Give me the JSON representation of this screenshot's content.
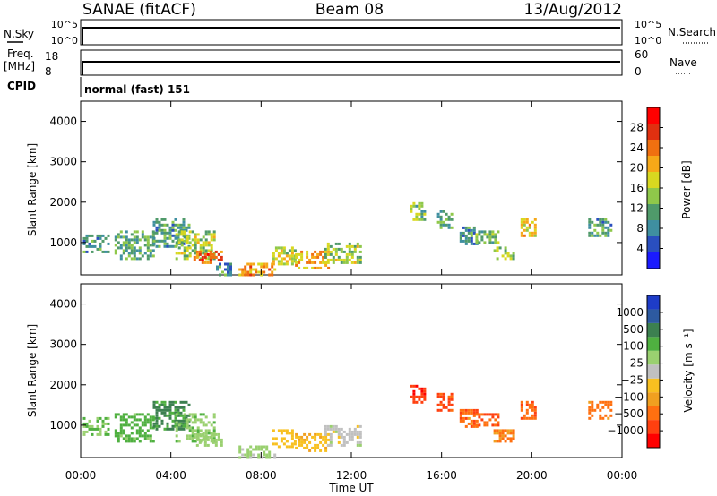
{
  "header": {
    "station": "SANAE (fitACF)",
    "beam": "Beam 08",
    "date": "13/Aug/2012"
  },
  "nsky_panel": {
    "label": "N.Sky",
    "right_label": "N.Search",
    "left_ticks": [
      "10^5",
      "10^0"
    ],
    "right_ticks": [
      "10^5",
      "10^0"
    ]
  },
  "freq_panel": {
    "label_line1": "Freq.",
    "label_line2": "[MHz]",
    "right_label": "Nave",
    "left_ticks": [
      "18",
      "8"
    ],
    "right_ticks": [
      "60",
      "0"
    ]
  },
  "cpid": {
    "label": "CPID",
    "value": "normal (fast) 151"
  },
  "chart_data": [
    {
      "type": "heatmap",
      "quantity": "power",
      "ylabel": "Slant Range [km]",
      "y_ticks": [
        "1000",
        "2000",
        "3000",
        "4000"
      ],
      "ylim": [
        200,
        4500
      ],
      "x_ticks": [
        "00:00",
        "04:00",
        "08:00",
        "12:00",
        "16:00",
        "20:00",
        "00:00"
      ],
      "xlim_hours": [
        0,
        24
      ],
      "colorbar": {
        "label": "Power [dB]",
        "ticks": [
          "4",
          "8",
          "12",
          "16",
          "20",
          "24",
          "28"
        ],
        "colors": [
          "#1a1aff",
          "#2a4fbf",
          "#3f8fa0",
          "#4f9a6a",
          "#8fc84a",
          "#d8d820",
          "#f6a818",
          "#f07010",
          "#e03010",
          "#ff0000"
        ]
      },
      "patches": [
        {
          "t": [
            0.1,
            1.2
          ],
          "r": [
            800,
            1200
          ],
          "v": 8
        },
        {
          "t": [
            1.5,
            3.2
          ],
          "r": [
            600,
            1300
          ],
          "v": 10
        },
        {
          "t": [
            3.2,
            4.8
          ],
          "r": [
            900,
            1600
          ],
          "v": 9
        },
        {
          "t": [
            4.2,
            5.9
          ],
          "r": [
            600,
            1300
          ],
          "v": 14
        },
        {
          "t": [
            5.0,
            6.3
          ],
          "r": [
            500,
            800
          ],
          "v": 24
        },
        {
          "t": [
            6.0,
            6.6
          ],
          "r": [
            200,
            500
          ],
          "v": 8
        },
        {
          "t": [
            7.0,
            8.6
          ],
          "r": [
            200,
            500
          ],
          "v": 22
        },
        {
          "t": [
            8.5,
            9.5
          ],
          "r": [
            500,
            900
          ],
          "v": 16
        },
        {
          "t": [
            9.5,
            11.0
          ],
          "r": [
            400,
            800
          ],
          "v": 20
        },
        {
          "t": [
            10.8,
            12.4
          ],
          "r": [
            500,
            1000
          ],
          "v": 14
        },
        {
          "t": [
            14.6,
            15.3
          ],
          "r": [
            1600,
            2000
          ],
          "v": 12
        },
        {
          "t": [
            15.8,
            16.4
          ],
          "r": [
            1400,
            1800
          ],
          "v": 10
        },
        {
          "t": [
            16.8,
            17.6
          ],
          "r": [
            1000,
            1400
          ],
          "v": 8
        },
        {
          "t": [
            17.5,
            18.5
          ],
          "r": [
            1000,
            1300
          ],
          "v": 12
        },
        {
          "t": [
            18.3,
            19.2
          ],
          "r": [
            600,
            900
          ],
          "v": 14
        },
        {
          "t": [
            19.5,
            20.2
          ],
          "r": [
            1200,
            1600
          ],
          "v": 18
        },
        {
          "t": [
            22.5,
            23.5
          ],
          "r": [
            1200,
            1600
          ],
          "v": 8
        }
      ]
    },
    {
      "type": "heatmap",
      "quantity": "velocity",
      "ylabel": "Slant Range [km]",
      "y_ticks": [
        "1000",
        "2000",
        "3000",
        "4000"
      ],
      "ylim": [
        200,
        4500
      ],
      "x_ticks": [
        "00:00",
        "04:00",
        "08:00",
        "12:00",
        "16:00",
        "20:00",
        "00:00"
      ],
      "x_axis_label": "Time UT",
      "xlim_hours": [
        0,
        24
      ],
      "colorbar": {
        "label": "Velocity [m s⁻¹]",
        "ticks": [
          "1000",
          "500",
          "100",
          "25",
          "−25",
          "−100",
          "−500",
          "−1000"
        ],
        "colors": [
          "#1e3cc8",
          "#2d5aa0",
          "#3c8050",
          "#4fb040",
          "#9ad070",
          "#c0c0c0",
          "#f8c020",
          "#f0a020",
          "#ff7010",
          "#ff4010",
          "#ff0000"
        ]
      },
      "patches": [
        {
          "t": [
            0.1,
            1.2
          ],
          "r": [
            800,
            1200
          ],
          "v": 100
        },
        {
          "t": [
            1.5,
            3.2
          ],
          "r": [
            600,
            1300
          ],
          "v": 150
        },
        {
          "t": [
            3.2,
            4.8
          ],
          "r": [
            900,
            1600
          ],
          "v": 300
        },
        {
          "t": [
            4.2,
            5.9
          ],
          "r": [
            600,
            1300
          ],
          "v": 80
        },
        {
          "t": [
            5.0,
            6.3
          ],
          "r": [
            500,
            800
          ],
          "v": 60
        },
        {
          "t": [
            7.0,
            8.6
          ],
          "r": [
            200,
            500
          ],
          "v": 40
        },
        {
          "t": [
            8.5,
            9.5
          ],
          "r": [
            500,
            900
          ],
          "v": -60
        },
        {
          "t": [
            9.5,
            11.0
          ],
          "r": [
            400,
            800
          ],
          "v": -80
        },
        {
          "t": [
            10.8,
            12.4
          ],
          "r": [
            500,
            1000
          ],
          "v": 0
        },
        {
          "t": [
            14.6,
            15.3
          ],
          "r": [
            1600,
            2000
          ],
          "v": -900
        },
        {
          "t": [
            15.8,
            16.4
          ],
          "r": [
            1400,
            1800
          ],
          "v": -600
        },
        {
          "t": [
            16.8,
            17.6
          ],
          "r": [
            1000,
            1400
          ],
          "v": -400
        },
        {
          "t": [
            17.5,
            18.5
          ],
          "r": [
            1000,
            1300
          ],
          "v": -500
        },
        {
          "t": [
            18.3,
            19.2
          ],
          "r": [
            600,
            900
          ],
          "v": -300
        },
        {
          "t": [
            19.5,
            20.2
          ],
          "r": [
            1200,
            1600
          ],
          "v": -450
        },
        {
          "t": [
            22.5,
            23.5
          ],
          "r": [
            1200,
            1600
          ],
          "v": -350
        }
      ]
    }
  ]
}
